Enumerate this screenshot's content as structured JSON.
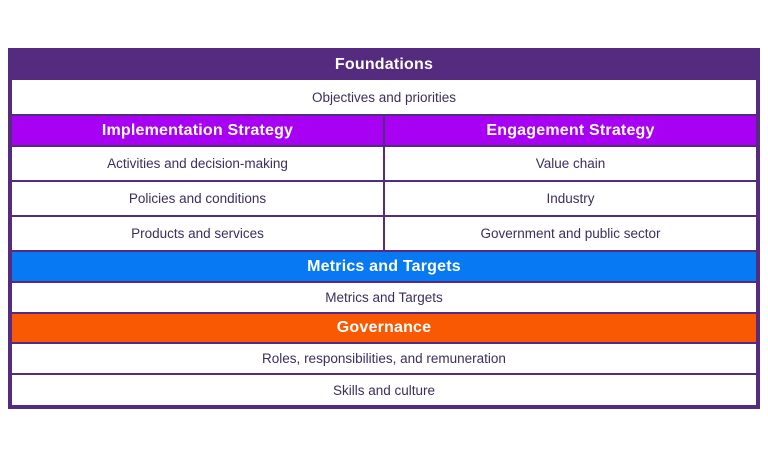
{
  "framework_table": {
    "foundations": {
      "header": "Foundations",
      "rows": [
        "Objectives and priorities"
      ]
    },
    "strategies": {
      "implementation": {
        "header": "Implementation Strategy",
        "rows": [
          "Activities and decision-making",
          "Policies and conditions",
          "Products and services"
        ]
      },
      "engagement": {
        "header": "Engagement Strategy",
        "rows": [
          "Value chain",
          "Industry",
          "Government and public sector"
        ]
      }
    },
    "metrics": {
      "header": "Metrics and Targets",
      "rows": [
        "Metrics and Targets"
      ]
    },
    "governance": {
      "header": "Governance",
      "rows": [
        "Roles, responsibilities, and remuneration",
        "Skills and culture"
      ]
    }
  },
  "colors": {
    "dark_purple": "#542b7e",
    "violet": "#a800f2",
    "blue": "#0779f2",
    "orange": "#f95902",
    "text": "#3d2d5e",
    "header_text": "#ffffff",
    "page_bg": "#ffffff"
  }
}
